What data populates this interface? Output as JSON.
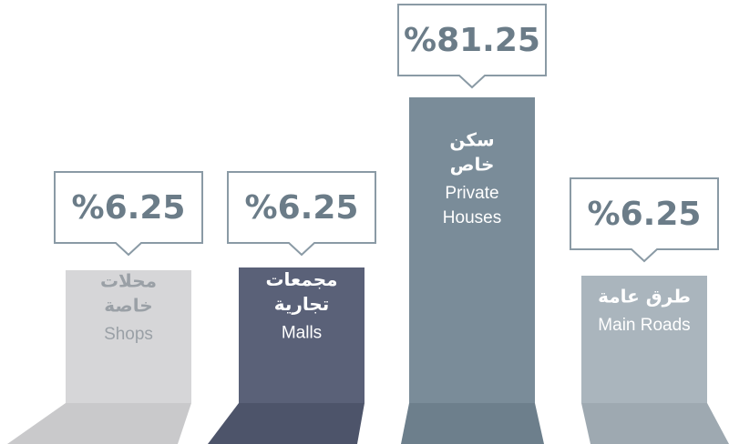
{
  "chart_data": {
    "type": "bar",
    "categories": [
      {
        "ar": [
          "محلات",
          "خاصة"
        ],
        "en": [
          "Shops"
        ]
      },
      {
        "ar": [
          "مجمعات",
          "تجارية"
        ],
        "en": [
          "Malls"
        ]
      },
      {
        "ar": [
          "سكن",
          "خاص"
        ],
        "en": [
          "Private",
          "Houses"
        ]
      },
      {
        "ar": [
          "طرق عامة"
        ],
        "en": [
          "Main Roads"
        ]
      }
    ],
    "values": [
      6.25,
      6.25,
      81.25,
      6.25
    ],
    "value_labels": [
      "%6.25",
      "%6.25",
      "%81.25",
      "%6.25"
    ],
    "colors": [
      "#d6d6d8",
      "#5a6178",
      "#7a8c99",
      "#aab5bd"
    ]
  }
}
